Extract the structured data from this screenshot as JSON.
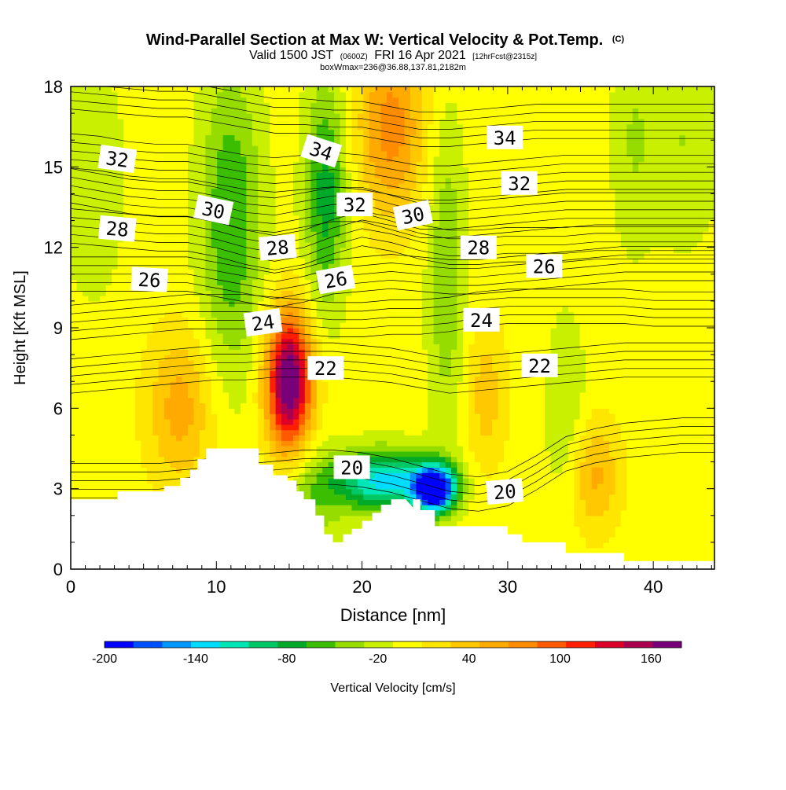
{
  "chart_data": {
    "type": "heatmap",
    "title": "Wind-Parallel Section at Max W: Vertical Velocity & Pot.Temp.",
    "title_mark": "(C)",
    "subtitle_parts": [
      "Valid 1500 JST",
      "(0600Z)",
      "FRI 16 Apr 2021",
      "[12hrFcst@2315z]"
    ],
    "subtitle2": "boxWmax=236@36.88,137.81,2182m",
    "xlabel": "Distance [nm]",
    "ylabel": "Height [Kft MSL]",
    "xlim": [
      0,
      44.2
    ],
    "ylim": [
      0,
      18
    ],
    "xticks": [
      "0",
      "10",
      "20",
      "30",
      "40"
    ],
    "xtick_values": [
      0,
      10,
      20,
      30,
      40
    ],
    "yticks": [
      "0",
      "3",
      "6",
      "9",
      "12",
      "15",
      "18"
    ],
    "ytick_values": [
      0,
      3,
      6,
      9,
      12,
      15,
      18
    ],
    "colorbar": {
      "label": "Vertical Velocity [cm/s]",
      "min": -200,
      "max": 180,
      "step": 20,
      "tick_labels": [
        "-200",
        "-140",
        "-80",
        "-20",
        "40",
        "100",
        "160"
      ],
      "tick_values": [
        -200,
        -140,
        -80,
        -20,
        40,
        100,
        160
      ],
      "colors": [
        "#0000ff",
        "#0050ff",
        "#0096ff",
        "#00dcff",
        "#00e6b4",
        "#00c864",
        "#00aa28",
        "#3cbe00",
        "#96dc00",
        "#c8f000",
        "#ffff00",
        "#ffe600",
        "#ffc800",
        "#ffaa00",
        "#ff8c00",
        "#ff5a00",
        "#ff1e00",
        "#dc0028",
        "#aa0050",
        "#780078"
      ]
    },
    "w_features": [
      {
        "x": 15.0,
        "z": 7.0,
        "sx": 1.1,
        "sz": 1.8,
        "w": 200
      },
      {
        "x": 22.0,
        "z": 16.5,
        "sx": 1.6,
        "sz": 2.4,
        "w": 80
      },
      {
        "x": 7.5,
        "z": 6.0,
        "sx": 1.6,
        "sz": 2.0,
        "w": 60
      },
      {
        "x": 25.0,
        "z": 3.0,
        "sx": 1.0,
        "sz": 0.6,
        "w": -230
      },
      {
        "x": 21.5,
        "z": 3.3,
        "sx": 2.5,
        "sz": 0.8,
        "w": -140
      },
      {
        "x": 11.0,
        "z": 13.0,
        "sx": 1.5,
        "sz": 4.0,
        "w": -70
      },
      {
        "x": 17.5,
        "z": 14.0,
        "sx": 1.0,
        "sz": 3.0,
        "w": -80
      },
      {
        "x": 25.8,
        "z": 11.0,
        "sx": 0.9,
        "sz": 4.0,
        "w": -50
      },
      {
        "x": 42.0,
        "z": 16.0,
        "sx": 2.0,
        "sz": 2.8,
        "w": -30
      },
      {
        "x": 38.5,
        "z": 16.0,
        "sx": 1.0,
        "sz": 3.0,
        "w": -25
      },
      {
        "x": 1.5,
        "z": 14.5,
        "sx": 1.5,
        "sz": 3.0,
        "w": -30
      },
      {
        "x": 36.0,
        "z": 3.5,
        "sx": 1.2,
        "sz": 1.5,
        "w": 55
      },
      {
        "x": 34.0,
        "z": 6.0,
        "sx": 1.0,
        "sz": 2.5,
        "w": -30
      },
      {
        "x": 28.5,
        "z": 6.5,
        "sx": 1.0,
        "sz": 2.0,
        "w": 40
      },
      {
        "x": 16.5,
        "z": 2.5,
        "sx": 1.5,
        "sz": 1.5,
        "w": -40
      }
    ],
    "w_base": 10,
    "terrain": {
      "x": [
        0,
        3.2,
        3.2,
        6.4,
        6.4,
        7.5,
        7.5,
        8.2,
        8.2,
        8.7,
        8.7,
        9.3,
        9.3,
        12.9,
        12.9,
        13.9,
        13.9,
        14.9,
        14.9,
        15.5,
        15.5,
        16.0,
        16.0,
        16.8,
        16.8,
        17.4,
        17.4,
        18.0,
        18.0,
        18.7,
        18.7,
        19.3,
        19.3,
        20.0,
        20.0,
        20.7,
        20.7,
        21.3,
        21.3,
        22.0,
        22.0,
        23.0,
        23.5,
        23.5,
        24.0,
        24.0,
        25.0,
        25.0,
        26.0,
        26.0,
        30.0,
        30.0,
        31.0,
        31.0,
        34.0,
        34.0,
        38.0,
        38.0,
        44.2
      ],
      "z": [
        2.6,
        2.6,
        2.9,
        2.9,
        3.1,
        3.1,
        3.4,
        3.4,
        3.7,
        3.7,
        4.1,
        4.1,
        4.5,
        4.5,
        3.9,
        3.9,
        3.5,
        3.5,
        3.3,
        3.3,
        2.9,
        2.9,
        2.6,
        2.6,
        2.0,
        2.0,
        1.3,
        1.3,
        1.0,
        1.0,
        1.3,
        1.3,
        1.5,
        1.5,
        1.8,
        1.8,
        2.1,
        2.1,
        2.4,
        2.4,
        2.6,
        2.6,
        2.3,
        2.6,
        2.6,
        2.2,
        2.2,
        1.6,
        1.6,
        1.6,
        1.6,
        1.3,
        1.3,
        1.0,
        1.0,
        0.6,
        0.6,
        0.3,
        0.3
      ]
    },
    "isentropes": {
      "x": [
        0,
        2,
        4,
        6,
        8,
        10,
        12,
        14,
        16,
        18,
        20,
        22,
        24,
        26,
        28,
        30,
        32,
        34,
        36,
        38,
        40,
        42,
        44.2
      ],
      "lines": [
        {
          "theta": 20,
          "z": [
            3.3,
            3.3,
            3.3,
            3.3,
            3.4,
            3.5,
            3.6,
            3.7,
            3.8,
            3.8,
            3.7,
            3.5,
            3.2,
            2.9,
            2.8,
            3.0,
            3.6,
            4.3,
            4.6,
            4.8,
            4.9,
            5.0,
            5.0
          ]
        },
        {
          "theta": 22,
          "z": [
            7.2,
            7.3,
            7.4,
            7.5,
            7.6,
            7.7,
            7.7,
            7.8,
            7.8,
            7.8,
            7.7,
            7.6,
            7.4,
            7.2,
            7.3,
            7.4,
            7.5,
            7.6,
            7.7,
            7.8,
            7.8,
            7.8,
            7.8
          ]
        },
        {
          "theta": 24,
          "z": [
            9.2,
            9.3,
            9.4,
            9.5,
            9.6,
            9.6,
            9.6,
            9.5,
            9.4,
            9.3,
            9.3,
            9.4,
            9.4,
            9.5,
            9.7,
            9.8,
            9.8,
            9.8,
            9.8,
            9.8,
            9.7,
            9.7,
            9.7
          ]
        },
        {
          "theta": 26,
          "z": [
            11.0,
            11.0,
            11.0,
            11.0,
            11.0,
            10.8,
            10.6,
            10.4,
            10.6,
            10.9,
            11.0,
            11.1,
            11.0,
            10.9,
            10.9,
            11.0,
            11.1,
            11.2,
            11.3,
            11.4,
            11.4,
            11.4,
            11.4
          ]
        },
        {
          "theta": 28,
          "z": [
            12.8,
            12.7,
            12.6,
            12.5,
            12.5,
            12.3,
            12.0,
            11.8,
            12.0,
            12.4,
            12.7,
            12.5,
            12.2,
            12.0,
            12.0,
            12.1,
            12.1,
            12.1,
            12.2,
            12.2,
            12.2,
            12.2,
            12.2
          ]
        },
        {
          "theta": 30,
          "z": [
            14.3,
            14.1,
            13.9,
            13.8,
            13.8,
            13.6,
            13.3,
            13.2,
            13.4,
            13.6,
            13.6,
            13.3,
            13.0,
            13.0,
            13.1,
            13.2,
            13.3,
            13.4,
            13.4,
            13.4,
            13.4,
            13.4,
            13.4
          ]
        },
        {
          "theta": 32,
          "z": [
            15.6,
            15.5,
            15.3,
            15.2,
            15.2,
            15.0,
            14.8,
            14.7,
            14.8,
            14.9,
            14.8,
            14.6,
            14.4,
            14.4,
            14.5,
            14.6,
            14.7,
            14.8,
            14.8,
            14.8,
            14.8,
            14.8,
            14.8
          ]
        },
        {
          "theta": 34,
          "z": [
            17.8,
            17.7,
            17.6,
            17.5,
            17.5,
            17.3,
            17.1,
            16.9,
            16.9,
            16.8,
            16.8,
            16.6,
            16.4,
            16.4,
            16.5,
            16.6,
            16.7,
            16.7,
            16.7,
            16.7,
            16.7,
            16.7,
            16.7
          ]
        }
      ]
    },
    "contour_labels": [
      {
        "text": "32",
        "x": 3.2,
        "z": 15.3,
        "rot": 8
      },
      {
        "text": "28",
        "x": 3.2,
        "z": 12.7,
        "rot": 5
      },
      {
        "text": "26",
        "x": 5.4,
        "z": 10.8,
        "rot": 3
      },
      {
        "text": "30",
        "x": 9.8,
        "z": 13.4,
        "rot": 12
      },
      {
        "text": "28",
        "x": 14.2,
        "z": 12.0,
        "rot": -5
      },
      {
        "text": "24",
        "x": 13.2,
        "z": 9.2,
        "rot": -8
      },
      {
        "text": "34",
        "x": 17.2,
        "z": 15.6,
        "rot": 18
      },
      {
        "text": "32",
        "x": 19.5,
        "z": 13.6,
        "rot": 0
      },
      {
        "text": "26",
        "x": 18.2,
        "z": 10.8,
        "rot": -10
      },
      {
        "text": "22",
        "x": 17.5,
        "z": 7.5,
        "rot": 0
      },
      {
        "text": "30",
        "x": 23.5,
        "z": 13.2,
        "rot": -12
      },
      {
        "text": "28",
        "x": 28.0,
        "z": 12.0,
        "rot": 0
      },
      {
        "text": "24",
        "x": 28.2,
        "z": 9.3,
        "rot": 0
      },
      {
        "text": "34",
        "x": 29.8,
        "z": 16.1,
        "rot": 0
      },
      {
        "text": "32",
        "x": 30.8,
        "z": 14.4,
        "rot": 0
      },
      {
        "text": "26",
        "x": 32.5,
        "z": 11.3,
        "rot": 0
      },
      {
        "text": "22",
        "x": 32.2,
        "z": 7.6,
        "rot": 0
      },
      {
        "text": "20",
        "x": 19.3,
        "z": 3.8,
        "rot": 0
      },
      {
        "text": "20",
        "x": 29.8,
        "z": 2.9,
        "rot": -5
      }
    ]
  }
}
